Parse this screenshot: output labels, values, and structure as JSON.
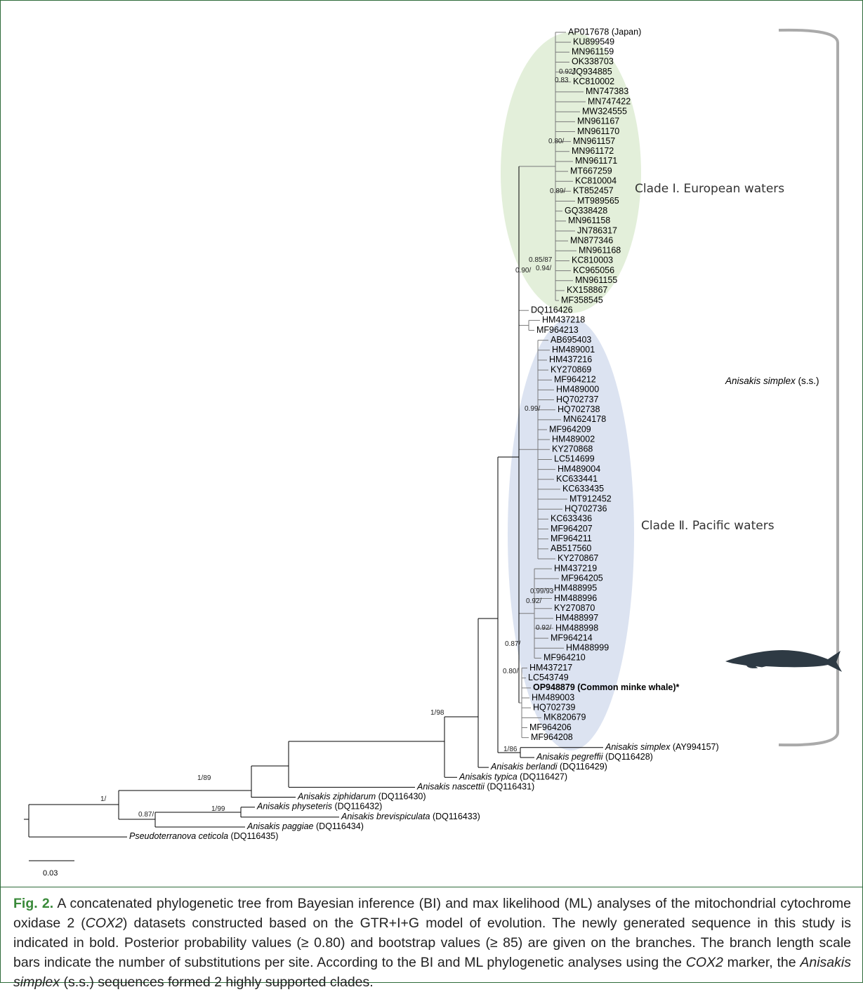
{
  "tree": {
    "leaves": [
      "AP017678 (Japan)",
      "KU899549",
      "MN961159",
      "OK338703",
      "JQ934885",
      "KC810002",
      "MN747383",
      "MN747422",
      "MW324555",
      "MN961167",
      "MN961170",
      "MN961157",
      "MN961172",
      "MN961171",
      "MT667259",
      "KC810004",
      "KT852457",
      "MT989565",
      "GQ338428",
      "MN961158",
      "JN786317",
      "MN877346",
      "MN961168",
      "KC810003",
      "KC965056",
      "MN961155",
      "KX158867",
      "MF358545",
      "DQ116426",
      "HM437218",
      "MF964213",
      "AB695403",
      "HM489001",
      "HM437216",
      "KY270869",
      "MF964212",
      "HM489000",
      "HQ702737",
      "HQ702738",
      "MN624178",
      "MF964209",
      "HM489002",
      "KY270868",
      "LC514699",
      "HM489004",
      "KC633441",
      "KC633435",
      "MT912452",
      "HQ702736",
      "KC633436",
      "MF964207",
      "MF964211",
      "AB517560",
      "KY270867",
      "HM437219",
      "MF964205",
      "HM488995",
      "HM488996",
      "KY270870",
      "HM488997",
      "HM488998",
      "MF964214",
      "HM488999",
      "MF964210",
      "HM437217",
      "LC543749",
      {
        "label": "OP948879 (Common minke whale)*",
        "bold": true
      },
      "HM489003",
      "HQ702739",
      "MK820679",
      "MF964206",
      "MF964208"
    ],
    "outgroups": [
      {
        "species": "Anisakis simplex",
        "accession": "(AY994157)"
      },
      {
        "species": "Anisakis pegreffii",
        "accession": "(DQ116428)"
      },
      {
        "species": "Anisakis berlandi",
        "accession": "(DQ116429)"
      },
      {
        "species": "Anisakis typica",
        "accession": "(DQ116427)"
      },
      {
        "species": "Anisakis nascettii",
        "accession": "(DQ116431)"
      },
      {
        "species": "Anisakis ziphidarum",
        "accession": "(DQ116430)"
      },
      {
        "species": "Anisakis physeteris",
        "accession": "(DQ116432)"
      },
      {
        "species": "Anisakis brevispiculata",
        "accession": "(DQ116433)"
      },
      {
        "species": "Anisakis paggiae",
        "accession": "(DQ116434)"
      },
      {
        "species": "Pseudoterranova ceticola",
        "accession": "(DQ116435)"
      }
    ],
    "support_values": [
      "0.92/",
      "0.83",
      "0.80/",
      "0.89/",
      "0.85/87",
      "0.90/",
      "0.94/",
      "0.99/",
      "0.99/93",
      "0.92/",
      "0.92/",
      "0.87/",
      "0.80/",
      "1/98",
      "1/86",
      "1/89",
      "1/",
      "1/99",
      "0.87/"
    ],
    "clade_labels": [
      "Clade Ⅰ. European waters",
      "Clade Ⅱ. Pacific waters"
    ],
    "species_bracket": {
      "species": "Anisakis simplex",
      "qualifier": "(s.s.)"
    },
    "scale_bar": "0.03"
  },
  "caption": {
    "label": "Fig. 2.",
    "segments": [
      {
        "text": " A concatenated phylogenetic tree from Bayesian inference (BI) and max likelihood (ML) analyses of the mitochondrial cytochrome oxidase 2 ("
      },
      {
        "text": "COX2",
        "italic": true
      },
      {
        "text": ") datasets constructed based on the GTR+I+G model of evolution. The newly generated sequence in this study is indicated in bold. Posterior probability values (≥ 0.80) and bootstrap values (≥ 85) are given on the branches. The branch length scale bars indicate the number of substitutions per site. According to the BI and ML phylogenetic analyses using the "
      },
      {
        "text": "COX2",
        "italic": true
      },
      {
        "text": " marker, the "
      },
      {
        "text": "Anisakis simplex",
        "italic": true
      },
      {
        "text": " (s.s.) sequences formed 2 highly supported clades."
      }
    ]
  }
}
